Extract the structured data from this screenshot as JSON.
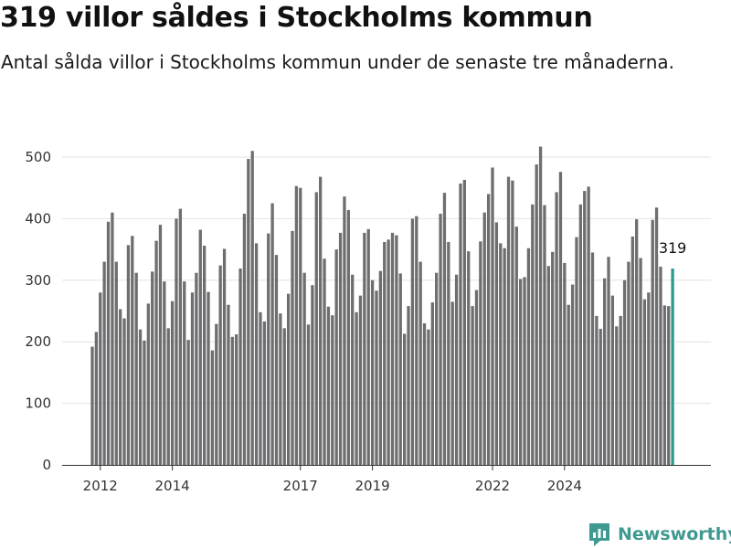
{
  "header": {
    "title": "319 villor såldes i Stockholms kommun",
    "subtitle": "Antal sålda villor i Stockholms kommun under de senaste tre månaderna."
  },
  "brand": {
    "name": "Newsworthy"
  },
  "colors": {
    "bar": "#6e6d70",
    "highlight": "#2a9d8f",
    "grid": "#e2e2e2",
    "axis": "#333333",
    "brand": "#3f9990"
  },
  "chart_data": {
    "type": "bar",
    "title": "319 villor såldes i Stockholms kommun",
    "subtitle": "Antal sålda villor i Stockholms kommun under de senaste tre månaderna.",
    "xlabel": "",
    "ylabel": "",
    "ylim": [
      0,
      540
    ],
    "yticks": [
      0,
      100,
      200,
      300,
      400,
      500
    ],
    "xtick_labels": [
      "2012",
      "2014",
      "2017",
      "2019",
      "2022",
      "2024"
    ],
    "xtick_positions": [
      2,
      20,
      52,
      70,
      100,
      118
    ],
    "highlight_label": "319",
    "grid": true,
    "values": [
      192,
      216,
      280,
      330,
      395,
      410,
      330,
      253,
      238,
      357,
      372,
      312,
      220,
      202,
      262,
      314,
      364,
      390,
      298,
      222,
      266,
      400,
      416,
      298,
      203,
      280,
      312,
      382,
      356,
      281,
      186,
      229,
      324,
      351,
      260,
      208,
      212,
      319,
      408,
      497,
      510,
      360,
      248,
      233,
      376,
      425,
      341,
      246,
      222,
      278,
      380,
      453,
      450,
      312,
      228,
      292,
      443,
      468,
      335,
      257,
      243,
      350,
      377,
      436,
      414,
      309,
      248,
      275,
      377,
      383,
      300,
      283,
      315,
      362,
      366,
      377,
      373,
      311,
      213,
      258,
      400,
      404,
      330,
      230,
      220,
      264,
      312,
      408,
      442,
      362,
      265,
      309,
      457,
      463,
      347,
      258,
      284,
      363,
      410,
      440,
      483,
      394,
      360,
      352,
      468,
      462,
      387,
      302,
      305,
      352,
      423,
      488,
      517,
      422,
      323,
      346,
      443,
      476,
      328,
      260,
      293,
      370,
      423,
      445,
      452,
      345,
      242,
      221,
      303,
      338,
      275,
      225,
      242,
      300,
      330,
      371,
      399,
      336,
      269,
      280,
      398,
      418,
      322,
      259,
      258,
      319
    ]
  }
}
